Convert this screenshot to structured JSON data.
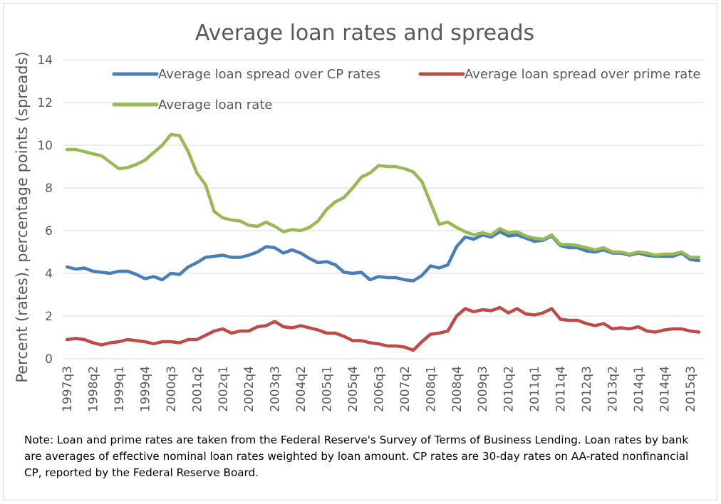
{
  "chart_data": {
    "type": "line",
    "title": "Average loan rates and spreads",
    "xlabel": "",
    "ylabel": "Percent (rates), percentage points (spreads)",
    "ylim": [
      0,
      14
    ],
    "yticks": [
      0,
      2,
      4,
      6,
      8,
      10,
      12,
      14
    ],
    "grid": true,
    "legend_position": "top",
    "categories": [
      "1997q3",
      "1997q4",
      "1998q1",
      "1998q2",
      "1998q3",
      "1998q4",
      "1999q1",
      "1999q2",
      "1999q3",
      "1999q4",
      "2000q1",
      "2000q2",
      "2000q3",
      "2000q4",
      "2001q1",
      "2001q2",
      "2001q3",
      "2001q4",
      "2002q1",
      "2002q2",
      "2002q3",
      "2002q4",
      "2003q1",
      "2003q2",
      "2003q3",
      "2003q4",
      "2004q1",
      "2004q2",
      "2004q3",
      "2004q4",
      "2005q1",
      "2005q2",
      "2005q3",
      "2005q4",
      "2006q1",
      "2006q2",
      "2006q3",
      "2006q4",
      "2007q1",
      "2007q2",
      "2007q3",
      "2007q4",
      "2008q1",
      "2008q2",
      "2008q3",
      "2008q4",
      "2009q1",
      "2009q2",
      "2009q3",
      "2009q4",
      "2010q1",
      "2010q2",
      "2010q3",
      "2010q4",
      "2011q1",
      "2011q2",
      "2011q3",
      "2011q4",
      "2012q1",
      "2012q2",
      "2012q3",
      "2012q4",
      "2013q1",
      "2013q2",
      "2013q3",
      "2013q4",
      "2014q1",
      "2014q2",
      "2014q3",
      "2014q4",
      "2015q1",
      "2015q2",
      "2015q3",
      "2015q4"
    ],
    "tick_labels": [
      "1997q3",
      "1998q2",
      "1999q1",
      "1999q4",
      "2000q3",
      "2001q2",
      "2002q1",
      "2002q4",
      "2003q3",
      "2004q2",
      "2005q1",
      "2005q4",
      "2006q3",
      "2007q2",
      "2008q1",
      "2008q4",
      "2009q3",
      "2010q2",
      "2011q1",
      "2011q4",
      "2012q3",
      "2013q2",
      "2014q1",
      "2014q4",
      "2015q3"
    ],
    "series": [
      {
        "name": "Average loan spread over CP rates",
        "color": "#4a7ebb",
        "values": [
          4.3,
          4.2,
          4.25,
          4.1,
          4.05,
          4.0,
          4.1,
          4.1,
          3.95,
          3.75,
          3.85,
          3.7,
          4.0,
          3.95,
          4.3,
          4.5,
          4.75,
          4.8,
          4.85,
          4.75,
          4.75,
          4.85,
          5.0,
          5.25,
          5.2,
          4.95,
          5.1,
          4.95,
          4.7,
          4.5,
          4.55,
          4.4,
          4.05,
          4.0,
          4.05,
          3.7,
          3.85,
          3.8,
          3.8,
          3.7,
          3.65,
          3.9,
          4.35,
          4.25,
          4.4,
          5.25,
          5.7,
          5.6,
          5.8,
          5.7,
          5.95,
          5.75,
          5.8,
          5.65,
          5.5,
          5.55,
          5.75,
          5.3,
          5.2,
          5.2,
          5.05,
          5.0,
          5.1,
          4.95,
          4.95,
          4.85,
          4.95,
          4.85,
          4.8,
          4.8,
          4.8,
          4.95,
          4.65,
          4.6
        ]
      },
      {
        "name": "Average loan spread over prime rate",
        "color": "#be4b48",
        "values": [
          0.9,
          0.95,
          0.9,
          0.75,
          0.65,
          0.75,
          0.8,
          0.9,
          0.85,
          0.8,
          0.7,
          0.8,
          0.8,
          0.75,
          0.9,
          0.9,
          1.1,
          1.3,
          1.4,
          1.2,
          1.3,
          1.3,
          1.5,
          1.55,
          1.75,
          1.5,
          1.45,
          1.55,
          1.45,
          1.35,
          1.2,
          1.2,
          1.05,
          0.85,
          0.85,
          0.75,
          0.7,
          0.6,
          0.6,
          0.55,
          0.4,
          0.8,
          1.15,
          1.2,
          1.3,
          2.0,
          2.35,
          2.2,
          2.3,
          2.25,
          2.4,
          2.15,
          2.35,
          2.1,
          2.05,
          2.15,
          2.35,
          1.85,
          1.8,
          1.8,
          1.65,
          1.55,
          1.65,
          1.4,
          1.45,
          1.4,
          1.5,
          1.3,
          1.25,
          1.35,
          1.4,
          1.4,
          1.3,
          1.25
        ]
      },
      {
        "name": "Average loan rate",
        "color": "#98b954",
        "values": [
          9.8,
          9.8,
          9.7,
          9.6,
          9.5,
          9.2,
          8.9,
          8.95,
          9.1,
          9.3,
          9.65,
          10.0,
          10.5,
          10.45,
          9.7,
          8.7,
          8.15,
          6.9,
          6.6,
          6.5,
          6.45,
          6.25,
          6.2,
          6.4,
          6.2,
          5.95,
          6.05,
          6.0,
          6.15,
          6.45,
          7.0,
          7.35,
          7.55,
          8.0,
          8.5,
          8.7,
          9.05,
          9.0,
          9.0,
          8.9,
          8.75,
          8.3,
          7.3,
          6.3,
          6.4,
          6.15,
          5.95,
          5.8,
          5.9,
          5.8,
          6.1,
          5.9,
          5.95,
          5.75,
          5.65,
          5.6,
          5.8,
          5.35,
          5.35,
          5.3,
          5.2,
          5.1,
          5.2,
          5.0,
          5.0,
          4.9,
          5.0,
          4.95,
          4.85,
          4.9,
          4.9,
          5.0,
          4.75,
          4.75
        ]
      }
    ]
  },
  "note": "Note:  Loan and prime rates are taken from the Federal Reserve's Survey of Terms of Business Lending.  Loan rates by bank are averages of effective nominal loan rates weighted by loan amount.  CP rates are 30-day rates on AA-rated nonfinancial CP, reported by the Federal Reserve Board."
}
